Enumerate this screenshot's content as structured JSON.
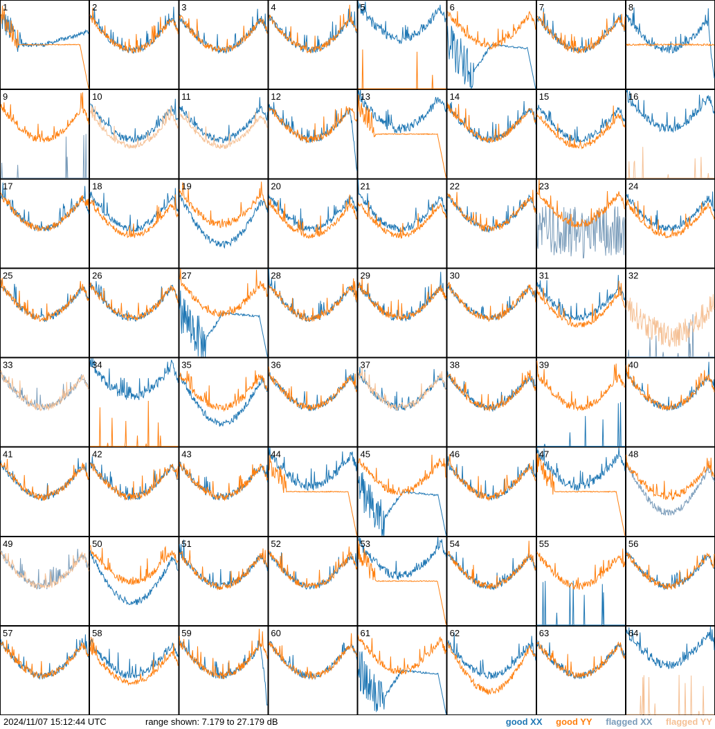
{
  "footer": {
    "timestamp": "2024/11/07 15:12:44 UTC",
    "range_text": "range shown: 7.179 to 27.179 dB"
  },
  "legend": {
    "good_xx": "good XX",
    "good_yy": "good YY",
    "flagged_xx": "flagged XX",
    "flagged_yy": "flagged YY"
  },
  "colors": {
    "good_xx": "#1f77b4",
    "good_yy": "#ff7f0e",
    "flagged_xx": "#7a9cba",
    "flagged_yy": "#f5c196"
  },
  "chart_data": {
    "type": "line",
    "layout": "8x8 small multiples",
    "ylim_db": [
      7.179,
      27.179
    ],
    "series_names": [
      "XX",
      "YY"
    ],
    "antennas": [
      {
        "id": "1",
        "xx": "good",
        "yy": "good",
        "xx_shape": "wobbly_dip",
        "yy_shape": "flat_drop"
      },
      {
        "id": "2",
        "xx": "good",
        "yy": "good",
        "xx_shape": "bowl",
        "yy_shape": "bowl"
      },
      {
        "id": "3",
        "xx": "good",
        "yy": "good",
        "xx_shape": "bowl",
        "yy_shape": "bowl"
      },
      {
        "id": "4",
        "xx": "good",
        "yy": "good",
        "xx_shape": "bowl",
        "yy_shape": "bowl"
      },
      {
        "id": "5",
        "xx": "good",
        "yy": "good",
        "xx_shape": "high_bowl",
        "yy_shape": "spikes_low"
      },
      {
        "id": "6",
        "xx": "good",
        "yy": "good",
        "xx_shape": "deep_dip",
        "yy_shape": "bowl_high"
      },
      {
        "id": "7",
        "xx": "good",
        "yy": "good",
        "xx_shape": "bowl",
        "yy_shape": "bowl"
      },
      {
        "id": "8",
        "xx": "good",
        "yy": "good",
        "xx_shape": "bowl_right_drop",
        "yy_shape": "flat"
      },
      {
        "id": "9",
        "xx": "flagged",
        "yy": "good",
        "xx_shape": "spikes_low",
        "yy_shape": "bowl"
      },
      {
        "id": "10",
        "xx": "good",
        "yy": "flagged",
        "xx_shape": "bowl",
        "yy_shape": "bowl_low"
      },
      {
        "id": "11",
        "xx": "good",
        "yy": "flagged",
        "xx_shape": "bowl",
        "yy_shape": "bowl_low"
      },
      {
        "id": "12",
        "xx": "good",
        "yy": "good",
        "xx_shape": "bowl_right_drop",
        "yy_shape": "bowl"
      },
      {
        "id": "13",
        "xx": "good",
        "yy": "good",
        "xx_shape": "high_bowl",
        "yy_shape": "flat_drop"
      },
      {
        "id": "14",
        "xx": "good",
        "yy": "good",
        "xx_shape": "bowl",
        "yy_shape": "bowl"
      },
      {
        "id": "15",
        "xx": "good",
        "yy": "good",
        "xx_shape": "bowl",
        "yy_shape": "bowl_low"
      },
      {
        "id": "16",
        "xx": "good",
        "yy": "flagged",
        "xx_shape": "high_bowl",
        "yy_shape": "spikes_low"
      },
      {
        "id": "17",
        "xx": "good",
        "yy": "good",
        "xx_shape": "bowl",
        "yy_shape": "bowl"
      },
      {
        "id": "18",
        "xx": "good",
        "yy": "good",
        "xx_shape": "bowl",
        "yy_shape": "bowl_low"
      },
      {
        "id": "19",
        "xx": "good",
        "yy": "good",
        "xx_shape": "deep_bowl",
        "yy_shape": "bowl_high"
      },
      {
        "id": "20",
        "xx": "good",
        "yy": "good",
        "xx_shape": "bowl",
        "yy_shape": "bowl_low"
      },
      {
        "id": "21",
        "xx": "good",
        "yy": "good",
        "xx_shape": "bowl",
        "yy_shape": "bowl_low"
      },
      {
        "id": "22",
        "xx": "good",
        "yy": "good",
        "xx_shape": "bowl",
        "yy_shape": "bowl"
      },
      {
        "id": "23",
        "xx": "flagged",
        "yy": "good",
        "xx_shape": "noise_low",
        "yy_shape": "bowl_high"
      },
      {
        "id": "24",
        "xx": "good",
        "yy": "good",
        "xx_shape": "bowl",
        "yy_shape": "bowl_low"
      },
      {
        "id": "25",
        "xx": "good",
        "yy": "good",
        "xx_shape": "bowl",
        "yy_shape": "bowl"
      },
      {
        "id": "26",
        "xx": "good",
        "yy": "good",
        "xx_shape": "bowl",
        "yy_shape": "bowl"
      },
      {
        "id": "27",
        "xx": "good",
        "yy": "good",
        "xx_shape": "deep_dip",
        "yy_shape": "bowl_high"
      },
      {
        "id": "28",
        "xx": "good",
        "yy": "good",
        "xx_shape": "bowl",
        "yy_shape": "bowl"
      },
      {
        "id": "29",
        "xx": "good",
        "yy": "good",
        "xx_shape": "bowl",
        "yy_shape": "bowl"
      },
      {
        "id": "30",
        "xx": "good",
        "yy": "good",
        "xx_shape": "bowl",
        "yy_shape": "bowl"
      },
      {
        "id": "31",
        "xx": "good",
        "yy": "good",
        "xx_shape": "bowl",
        "yy_shape": "bowl_low"
      },
      {
        "id": "32",
        "xx": "flagged",
        "yy": "flagged",
        "xx_shape": "spikes_low",
        "yy_shape": "noise_mid"
      },
      {
        "id": "33",
        "xx": "flagged",
        "yy": "flagged",
        "xx_shape": "bowl",
        "yy_shape": "bowl"
      },
      {
        "id": "34",
        "xx": "good",
        "yy": "good",
        "xx_shape": "high_bowl",
        "yy_shape": "spikes_low"
      },
      {
        "id": "35",
        "xx": "good",
        "yy": "good",
        "xx_shape": "deep_bowl",
        "yy_shape": "bowl"
      },
      {
        "id": "36",
        "xx": "good",
        "yy": "good",
        "xx_shape": "bowl",
        "yy_shape": "bowl"
      },
      {
        "id": "37",
        "xx": "good",
        "yy": "flagged",
        "xx_shape": "bowl",
        "yy_shape": "bowl"
      },
      {
        "id": "38",
        "xx": "good",
        "yy": "good",
        "xx_shape": "bowl",
        "yy_shape": "bowl"
      },
      {
        "id": "39",
        "xx": "good",
        "yy": "good",
        "xx_shape": "spikes_low",
        "yy_shape": "bowl"
      },
      {
        "id": "40",
        "xx": "good",
        "yy": "good",
        "xx_shape": "bowl",
        "yy_shape": "bowl"
      },
      {
        "id": "41",
        "xx": "good",
        "yy": "good",
        "xx_shape": "bowl",
        "yy_shape": "bowl"
      },
      {
        "id": "42",
        "xx": "good",
        "yy": "good",
        "xx_shape": "bowl",
        "yy_shape": "bowl"
      },
      {
        "id": "43",
        "xx": "good",
        "yy": "good",
        "xx_shape": "bowl",
        "yy_shape": "bowl"
      },
      {
        "id": "44",
        "xx": "good",
        "yy": "good",
        "xx_shape": "high_bowl",
        "yy_shape": "flat_drop"
      },
      {
        "id": "45",
        "xx": "good",
        "yy": "good",
        "xx_shape": "deep_dip",
        "yy_shape": "bowl_high"
      },
      {
        "id": "46",
        "xx": "good",
        "yy": "good",
        "xx_shape": "bowl",
        "yy_shape": "bowl"
      },
      {
        "id": "47",
        "xx": "good",
        "yy": "good",
        "xx_shape": "high_bowl",
        "yy_shape": "flat_drop"
      },
      {
        "id": "48",
        "xx": "flagged",
        "yy": "good",
        "xx_shape": "deep_bowl",
        "yy_shape": "bowl"
      },
      {
        "id": "49",
        "xx": "flagged",
        "yy": "flagged",
        "xx_shape": "bowl",
        "yy_shape": "bowl"
      },
      {
        "id": "50",
        "xx": "good",
        "yy": "good",
        "xx_shape": "deep_bowl",
        "yy_shape": "bowl_high"
      },
      {
        "id": "51",
        "xx": "good",
        "yy": "good",
        "xx_shape": "bowl",
        "yy_shape": "bowl"
      },
      {
        "id": "52",
        "xx": "good",
        "yy": "good",
        "xx_shape": "bowl",
        "yy_shape": "bowl"
      },
      {
        "id": "53",
        "xx": "good",
        "yy": "good",
        "xx_shape": "high_bowl",
        "yy_shape": "flat_drop"
      },
      {
        "id": "54",
        "xx": "good",
        "yy": "good",
        "xx_shape": "bowl",
        "yy_shape": "bowl"
      },
      {
        "id": "55",
        "xx": "good",
        "yy": "good",
        "xx_shape": "spikes_low",
        "yy_shape": "bowl"
      },
      {
        "id": "56",
        "xx": "good",
        "yy": "good",
        "xx_shape": "bowl",
        "yy_shape": "bowl"
      },
      {
        "id": "57",
        "xx": "good",
        "yy": "good",
        "xx_shape": "bowl",
        "yy_shape": "bowl"
      },
      {
        "id": "58",
        "xx": "good",
        "yy": "good",
        "xx_shape": "bowl",
        "yy_shape": "bowl_low"
      },
      {
        "id": "59",
        "xx": "good",
        "yy": "good",
        "xx_shape": "bowl_right_drop",
        "yy_shape": "bowl"
      },
      {
        "id": "60",
        "xx": "good",
        "yy": "good",
        "xx_shape": "bowl",
        "yy_shape": "bowl"
      },
      {
        "id": "61",
        "xx": "good",
        "yy": "good",
        "xx_shape": "deep_dip",
        "yy_shape": "bowl_high"
      },
      {
        "id": "62",
        "xx": "good",
        "yy": "good",
        "xx_shape": "bowl",
        "yy_shape": "deep_bowl"
      },
      {
        "id": "63",
        "xx": "good",
        "yy": "good",
        "xx_shape": "bowl",
        "yy_shape": "bowl"
      },
      {
        "id": "64",
        "xx": "good",
        "yy": "flagged",
        "xx_shape": "high_bowl",
        "yy_shape": "spikes_low"
      }
    ]
  }
}
